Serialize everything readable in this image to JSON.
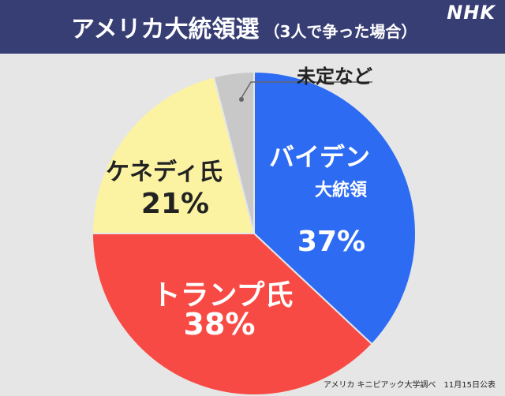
{
  "header": {
    "title": "アメリカ大統領選",
    "subtitle": "（3人で争った場合）",
    "logo": "NHK"
  },
  "source": "アメリカ キニピアック大学調べ　11月15日公表",
  "colors": {
    "header_bg": "#373e74",
    "background": "#e6e6e6"
  },
  "chart_data": {
    "type": "pie",
    "slices": [
      {
        "name": "バイデン",
        "name_sub": "大統領",
        "value": 37,
        "label": "37%",
        "color": "#2d6bf3"
      },
      {
        "name": "トランプ氏",
        "name_sub": "",
        "value": 38,
        "label": "38%",
        "color": "#f84a44"
      },
      {
        "name": "ケネディ氏",
        "name_sub": "",
        "value": 21,
        "label": "21%",
        "color": "#fbf3a2"
      },
      {
        "name": "未定など",
        "name_sub": "",
        "value": 4,
        "label": "",
        "color": "#c8c8c8"
      }
    ]
  }
}
